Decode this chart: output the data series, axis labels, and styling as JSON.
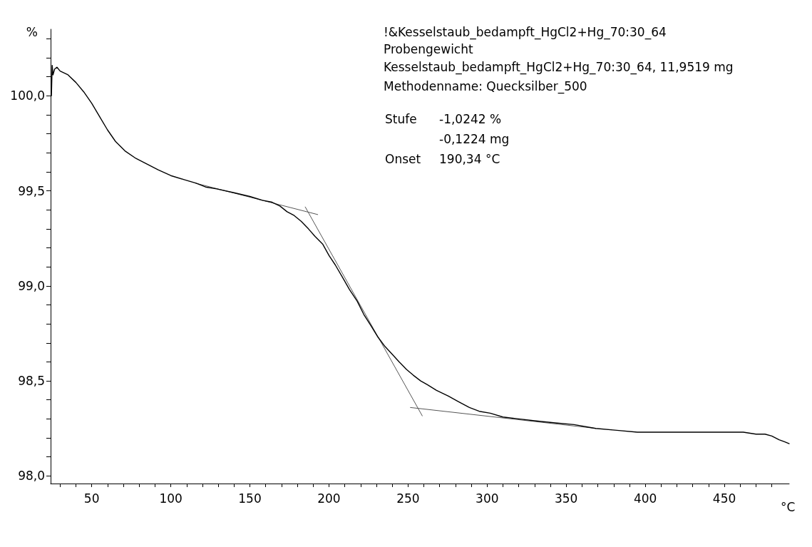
{
  "chart_data": {
    "type": "line",
    "xlabel": "°C",
    "ylabel": "%",
    "annotations": [
      "!&Kesselstaub_bedampft_HgCl2+Hg_70:30_64",
      "Probengewicht",
      "Kesselstaub_bedampft_HgCl2+Hg_70:30_64, 11,9519 mg",
      "Methodenname: Quecksilber_500",
      "Stufe",
      "-1,0242 %",
      "-0,1224 mg",
      "Onset",
      "190,34 °C"
    ],
    "xlim": [
      24,
      491
    ],
    "ylim": [
      97.96,
      100.35
    ],
    "xticks": [
      {
        "value": 30,
        "label": null
      },
      {
        "value": 40,
        "label": null
      },
      50,
      {
        "value": 60,
        "label": null
      },
      {
        "value": 70,
        "label": null
      },
      {
        "value": 80,
        "label": null
      },
      {
        "value": 90,
        "label": null
      },
      100,
      {
        "value": 110,
        "label": null
      },
      {
        "value": 120,
        "label": null
      },
      {
        "value": 130,
        "label": null
      },
      {
        "value": 140,
        "label": null
      },
      150,
      {
        "value": 160,
        "label": null
      },
      {
        "value": 170,
        "label": null
      },
      {
        "value": 180,
        "label": null
      },
      {
        "value": 190,
        "label": null
      },
      200,
      {
        "value": 210,
        "label": null
      },
      {
        "value": 220,
        "label": null
      },
      {
        "value": 230,
        "label": null
      },
      {
        "value": 240,
        "label": null
      },
      250,
      {
        "value": 260,
        "label": null
      },
      {
        "value": 270,
        "label": null
      },
      {
        "value": 280,
        "label": null
      },
      {
        "value": 290,
        "label": null
      },
      300,
      {
        "value": 310,
        "label": null
      },
      {
        "value": 320,
        "label": null
      },
      {
        "value": 330,
        "label": null
      },
      {
        "value": 340,
        "label": null
      },
      350,
      {
        "value": 360,
        "label": null
      },
      {
        "value": 370,
        "label": null
      },
      {
        "value": 380,
        "label": null
      },
      {
        "value": 390,
        "label": null
      },
      400,
      {
        "value": 410,
        "label": null
      },
      {
        "value": 420,
        "label": null
      },
      {
        "value": 430,
        "label": null
      },
      {
        "value": 440,
        "label": null
      },
      450,
      {
        "value": 460,
        "label": null
      },
      {
        "value": 470,
        "label": null
      },
      {
        "value": 480,
        "label": null
      }
    ],
    "yticks": [
      {
        "value": 98.0,
        "label": "98,0"
      },
      {
        "value": 98.1,
        "label": null
      },
      {
        "value": 98.2,
        "label": null
      },
      {
        "value": 98.3,
        "label": null
      },
      {
        "value": 98.4,
        "label": null
      },
      {
        "value": 98.5,
        "label": "98,5"
      },
      {
        "value": 98.6,
        "label": null
      },
      {
        "value": 98.7,
        "label": null
      },
      {
        "value": 98.8,
        "label": null
      },
      {
        "value": 98.9,
        "label": null
      },
      {
        "value": 99.0,
        "label": "99,0"
      },
      {
        "value": 99.1,
        "label": null
      },
      {
        "value": 99.2,
        "label": null
      },
      {
        "value": 99.3,
        "label": null
      },
      {
        "value": 99.4,
        "label": null
      },
      {
        "value": 99.5,
        "label": "99,5"
      },
      {
        "value": 99.6,
        "label": null
      },
      {
        "value": 99.7,
        "label": null
      },
      {
        "value": 99.8,
        "label": null
      },
      {
        "value": 99.9,
        "label": null
      },
      {
        "value": 100.0,
        "label": "100,0"
      },
      {
        "value": 100.1,
        "label": null
      },
      {
        "value": 100.2,
        "label": null
      },
      {
        "value": 100.3,
        "label": null
      }
    ],
    "grid": false,
    "marker": "none",
    "line_style": "solid",
    "series": [
      {
        "color": "#000000",
        "x": [
          24.5,
          25,
          25.5,
          26.5,
          28,
          30,
          35,
          40,
          45,
          50,
          55,
          60,
          65,
          71,
          78,
          85,
          92,
          100,
          108,
          116,
          122,
          129,
          140,
          150,
          158,
          164,
          169,
          173.5,
          178,
          182.4,
          187,
          191.2,
          196,
          200,
          204,
          208.9,
          213,
          217.8,
          222,
          226.6,
          231,
          235.5,
          240,
          244.4,
          249,
          253.3,
          258,
          262.2,
          268,
          275.5,
          282,
          288.8,
          295,
          302,
          310,
          320,
          330,
          342,
          355,
          368.7,
          382,
          395,
          405,
          417,
          428,
          440,
          450,
          462,
          470,
          475.7,
          480,
          484.6,
          488,
          491
        ],
        "values": [
          100.0,
          100.16,
          100.11,
          100.14,
          100.15,
          100.13,
          100.11,
          100.07,
          100.02,
          99.96,
          99.89,
          99.82,
          99.76,
          99.71,
          99.67,
          99.64,
          99.61,
          99.58,
          99.56,
          99.54,
          99.52,
          99.51,
          99.49,
          99.47,
          99.45,
          99.44,
          99.42,
          99.39,
          99.37,
          99.34,
          99.3,
          99.26,
          99.22,
          99.16,
          99.11,
          99.04,
          98.98,
          98.92,
          98.85,
          98.79,
          98.73,
          98.68,
          98.64,
          98.6,
          98.56,
          98.53,
          98.5,
          98.48,
          98.45,
          98.42,
          98.39,
          98.36,
          98.34,
          98.33,
          98.31,
          98.3,
          98.29,
          98.28,
          98.27,
          98.25,
          98.24,
          98.23,
          98.23,
          98.23,
          98.23,
          98.23,
          98.23,
          98.23,
          98.22,
          98.22,
          98.21,
          98.19,
          98.18,
          98.17
        ]
      },
      {
        "color": "#555555",
        "x": [
          115.7,
          192.9
        ],
        "values": [
          99.54,
          99.375
        ]
      },
      {
        "color": "#555555",
        "x": [
          185,
          259
        ],
        "values": [
          99.415,
          98.316
        ]
      },
      {
        "color": "#555555",
        "x": [
          251.5,
          368.7
        ],
        "values": [
          98.36,
          98.25
        ]
      }
    ]
  }
}
